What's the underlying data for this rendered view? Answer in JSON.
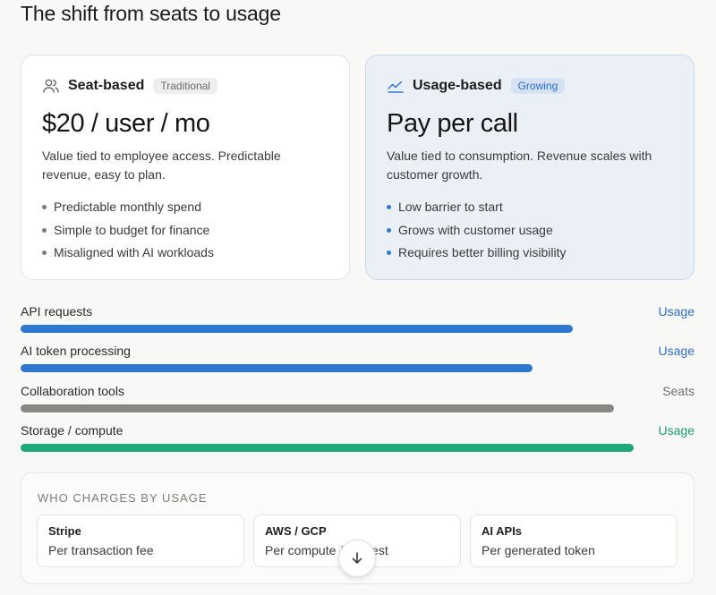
{
  "page": {
    "title": "The shift from seats to usage"
  },
  "cards": {
    "seat": {
      "name": "Seat-based",
      "badge": "Traditional",
      "icon": "users-icon",
      "price": "$20 / user / mo",
      "description": "Value tied to employee access. Predictable revenue, easy to plan.",
      "bullets": [
        "Predictable monthly spend",
        "Simple to budget for finance",
        "Misaligned with AI workloads"
      ]
    },
    "usage": {
      "name": "Usage-based",
      "badge": "Growing",
      "icon": "trend-line-icon",
      "price": "Pay per call",
      "description": "Value tied to consumption. Revenue scales with customer growth.",
      "bullets": [
        "Low barrier to start",
        "Grows with customer usage",
        "Requires better billing visibility"
      ]
    }
  },
  "bars": [
    {
      "label": "API requests",
      "type": "Usage",
      "level": 0.82,
      "color": "#2f78d2",
      "type_color": "#2f6fc0"
    },
    {
      "label": "AI token processing",
      "type": "Usage",
      "level": 0.76,
      "color": "#2f78d2",
      "type_color": "#2f6fc0"
    },
    {
      "label": "Collaboration tools",
      "type": "Seats",
      "level": 0.88,
      "color": "#878783",
      "type_color": "#6e6e6a"
    },
    {
      "label": "Storage / compute",
      "type": "Usage",
      "level": 0.91,
      "color": "#1fa97a",
      "type_color": "#1b9a6e"
    }
  ],
  "who": {
    "title": "WHO CHARGES BY USAGE",
    "vendors": [
      {
        "name": "Stripe",
        "desc": "Per transaction fee"
      },
      {
        "name": "AWS / GCP",
        "desc": "Per compute / request"
      },
      {
        "name": "AI APIs",
        "desc": "Per generated token"
      }
    ]
  },
  "scroll_button": {
    "icon": "arrow-down-icon"
  }
}
